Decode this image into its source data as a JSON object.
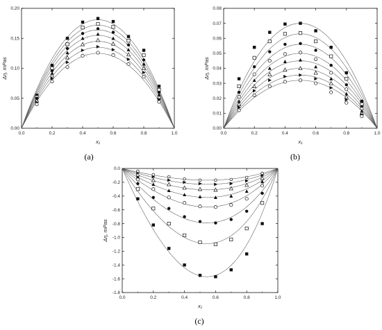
{
  "chart_data": [
    {
      "type": "scatter",
      "panel_label": "(a)",
      "xlabel": "x₁",
      "ylabel": "Δη, mPas",
      "xlim": [
        0.0,
        1.0
      ],
      "ylim": [
        0.0,
        0.2
      ],
      "x_ticks": [
        "0.0",
        "0.2",
        "0.4",
        "0.6",
        "0.8",
        "1.0"
      ],
      "y_ticks": [
        "0.00",
        "0.05",
        "0.10",
        "0.15",
        "0.20"
      ],
      "grid": false,
      "fit_curves": "symmetric parabola through (0,0) and (1,0) per series",
      "series": [
        {
          "marker": "filled-square",
          "peak": 0.181,
          "x": [
            0.1,
            0.2,
            0.3,
            0.4,
            0.5,
            0.6,
            0.7,
            0.8,
            0.9
          ],
          "y": [
            0.055,
            0.105,
            0.15,
            0.177,
            0.183,
            0.178,
            0.153,
            0.13,
            0.07
          ]
        },
        {
          "marker": "open-square",
          "peak": 0.172,
          "x": [
            0.1,
            0.2,
            0.3,
            0.4,
            0.5,
            0.6,
            0.7,
            0.8,
            0.9
          ],
          "y": [
            0.052,
            0.1,
            0.14,
            0.168,
            0.174,
            0.169,
            0.146,
            0.122,
            0.064
          ]
        },
        {
          "marker": "filled-circle",
          "peak": 0.164,
          "x": [
            0.1,
            0.2,
            0.3,
            0.4,
            0.5,
            0.6,
            0.7,
            0.8,
            0.9
          ],
          "y": [
            0.05,
            0.096,
            0.133,
            0.158,
            0.166,
            0.16,
            0.139,
            0.114,
            0.06
          ]
        },
        {
          "marker": "filled-triangle-up",
          "peak": 0.155,
          "x": [
            0.1,
            0.2,
            0.3,
            0.4,
            0.5,
            0.6,
            0.7,
            0.8,
            0.9
          ],
          "y": [
            0.048,
            0.092,
            0.126,
            0.15,
            0.157,
            0.15,
            0.131,
            0.107,
            0.056
          ]
        },
        {
          "marker": "open-triangle-up",
          "peak": 0.145,
          "x": [
            0.1,
            0.2,
            0.3,
            0.4,
            0.5,
            0.6,
            0.7,
            0.8,
            0.9
          ],
          "y": [
            0.046,
            0.088,
            0.118,
            0.14,
            0.147,
            0.141,
            0.123,
            0.1,
            0.052
          ]
        },
        {
          "marker": "filled-triangle-right",
          "peak": 0.135,
          "x": [
            0.1,
            0.2,
            0.3,
            0.4,
            0.5,
            0.6,
            0.7,
            0.8,
            0.9
          ],
          "y": [
            0.043,
            0.083,
            0.11,
            0.13,
            0.136,
            0.131,
            0.115,
            0.093,
            0.048
          ]
        },
        {
          "marker": "open-circle",
          "peak": 0.125,
          "x": [
            0.1,
            0.2,
            0.3,
            0.4,
            0.5,
            0.6,
            0.7,
            0.8,
            0.9
          ],
          "y": [
            0.04,
            0.078,
            0.102,
            0.121,
            0.126,
            0.122,
            0.107,
            0.086,
            0.044
          ]
        }
      ]
    },
    {
      "type": "scatter",
      "panel_label": "(b)",
      "xlabel": "x₁",
      "ylabel": "Δη, mPas",
      "xlim": [
        0.0,
        1.0
      ],
      "ylim": [
        0.0,
        0.08
      ],
      "x_ticks": [
        "0.0",
        "0.2",
        "0.4",
        "0.6",
        "0.8",
        "1.0"
      ],
      "y_ticks": [
        "0.00",
        "0.01",
        "0.02",
        "0.03",
        "0.04",
        "0.05",
        "0.06",
        "0.07",
        "0.08"
      ],
      "grid": false,
      "fit_curves": "symmetric parabola through (0,0) and (1,0) per series",
      "series": [
        {
          "marker": "filled-square",
          "peak": 0.07,
          "x": [
            0.1,
            0.2,
            0.3,
            0.4,
            0.5,
            0.6,
            0.7,
            0.8,
            0.9
          ],
          "y": [
            0.033,
            0.054,
            0.064,
            0.0695,
            0.07,
            0.065,
            0.054,
            0.037,
            0.018
          ]
        },
        {
          "marker": "open-square",
          "peak": 0.063,
          "x": [
            0.1,
            0.2,
            0.3,
            0.4,
            0.5,
            0.6,
            0.7,
            0.8,
            0.9
          ],
          "y": [
            0.028,
            0.047,
            0.058,
            0.063,
            0.0635,
            0.058,
            0.048,
            0.033,
            0.016
          ]
        },
        {
          "marker": "filled-circle",
          "peak": 0.056,
          "x": [
            0.1,
            0.2,
            0.3,
            0.4,
            0.5,
            0.6,
            0.7,
            0.8,
            0.9
          ],
          "y": [
            0.024,
            0.041,
            0.051,
            0.056,
            0.0565,
            0.052,
            0.042,
            0.029,
            0.0145
          ]
        },
        {
          "marker": "open-circle-alt",
          "peak": 0.05,
          "x": [
            0.1,
            0.2,
            0.3,
            0.4,
            0.5,
            0.6,
            0.7,
            0.8,
            0.9
          ],
          "y": [
            0.021,
            0.036,
            0.045,
            0.0495,
            0.0505,
            0.046,
            0.037,
            0.026,
            0.013
          ]
        },
        {
          "marker": "filled-triangle-up",
          "peak": 0.045,
          "x": [
            0.1,
            0.2,
            0.3,
            0.4,
            0.5,
            0.6,
            0.7,
            0.8,
            0.9
          ],
          "y": [
            0.018,
            0.032,
            0.04,
            0.0445,
            0.0455,
            0.041,
            0.033,
            0.023,
            0.0115
          ]
        },
        {
          "marker": "open-triangle-up",
          "peak": 0.04,
          "x": [
            0.1,
            0.2,
            0.3,
            0.4,
            0.5,
            0.6,
            0.7,
            0.8,
            0.9
          ],
          "y": [
            0.016,
            0.028,
            0.036,
            0.039,
            0.04,
            0.037,
            0.03,
            0.021,
            0.01
          ]
        },
        {
          "marker": "filled-triangle-right",
          "peak": 0.0355,
          "x": [
            0.1,
            0.2,
            0.3,
            0.4,
            0.5,
            0.6,
            0.7,
            0.8,
            0.9
          ],
          "y": [
            0.014,
            0.025,
            0.032,
            0.0345,
            0.0355,
            0.033,
            0.027,
            0.019,
            0.009
          ]
        },
        {
          "marker": "open-circle",
          "peak": 0.032,
          "x": [
            0.1,
            0.2,
            0.3,
            0.4,
            0.5,
            0.6,
            0.7,
            0.8,
            0.9
          ],
          "y": [
            0.012,
            0.022,
            0.028,
            0.031,
            0.032,
            0.03,
            0.024,
            0.017,
            0.008
          ]
        }
      ]
    },
    {
      "type": "scatter",
      "panel_label": "(c)",
      "xlabel": "x₁",
      "ylabel": "Δη, mPas",
      "xlim": [
        0.0,
        1.0
      ],
      "ylim": [
        -1.8,
        0.0
      ],
      "x_ticks": [
        "0.0",
        "0.2",
        "0.4",
        "0.6",
        "0.8",
        "1.0"
      ],
      "y_ticks": [
        "0.0",
        "-0.2",
        "-0.4",
        "-0.6",
        "-0.8",
        "-1.0",
        "-1.2",
        "-1.4",
        "-1.6",
        "-1.8"
      ],
      "grid": false,
      "fit_curves": "skewed polynomial through (0,0) and (1,0) per series, minimum near x1 = 0.58",
      "series": [
        {
          "marker": "filled-square",
          "peak": -1.57,
          "x": [
            0.1,
            0.2,
            0.3,
            0.4,
            0.5,
            0.6,
            0.7,
            0.8,
            0.9
          ],
          "y": [
            -0.44,
            -0.82,
            -1.16,
            -1.4,
            -1.55,
            -1.57,
            -1.47,
            -1.24,
            -0.8
          ]
        },
        {
          "marker": "open-square",
          "peak": -1.09,
          "x": [
            0.1,
            0.2,
            0.3,
            0.4,
            0.5,
            0.6,
            0.7,
            0.8,
            0.9
          ],
          "y": [
            -0.3,
            -0.58,
            -0.8,
            -0.97,
            -1.07,
            -1.1,
            -1.03,
            -0.87,
            -0.5
          ]
        },
        {
          "marker": "filled-circle",
          "peak": -0.79,
          "x": [
            0.1,
            0.2,
            0.3,
            0.4,
            0.5,
            0.6,
            0.7,
            0.8,
            0.9
          ],
          "y": [
            -0.22,
            -0.42,
            -0.58,
            -0.7,
            -0.77,
            -0.79,
            -0.74,
            -0.62,
            -0.36
          ]
        },
        {
          "marker": "open-circle",
          "peak": -0.56,
          "x": [
            0.1,
            0.2,
            0.3,
            0.4,
            0.5,
            0.6,
            0.7,
            0.8,
            0.9
          ],
          "y": [
            -0.16,
            -0.3,
            -0.42,
            -0.5,
            -0.55,
            -0.56,
            -0.53,
            -0.44,
            -0.25
          ]
        },
        {
          "marker": "filled-triangle-up",
          "peak": -0.42,
          "x": [
            0.1,
            0.2,
            0.3,
            0.4,
            0.5,
            0.6,
            0.7,
            0.8,
            0.9
          ],
          "y": [
            -0.12,
            -0.23,
            -0.32,
            -0.38,
            -0.41,
            -0.42,
            -0.4,
            -0.33,
            -0.19
          ]
        },
        {
          "marker": "open-triangle-up",
          "peak": -0.31,
          "x": [
            0.1,
            0.2,
            0.3,
            0.4,
            0.5,
            0.6,
            0.7,
            0.8,
            0.9
          ],
          "y": [
            -0.09,
            -0.17,
            -0.23,
            -0.28,
            -0.3,
            -0.31,
            -0.29,
            -0.24,
            -0.14
          ]
        },
        {
          "marker": "filled-triangle-right",
          "peak": -0.23,
          "x": [
            0.1,
            0.2,
            0.3,
            0.4,
            0.5,
            0.6,
            0.7,
            0.8,
            0.9
          ],
          "y": [
            -0.06,
            -0.12,
            -0.17,
            -0.2,
            -0.22,
            -0.23,
            -0.22,
            -0.18,
            -0.1
          ]
        },
        {
          "marker": "open-circle-small",
          "peak": -0.17,
          "x": [
            0.1,
            0.2,
            0.3,
            0.4,
            0.5,
            0.6,
            0.7,
            0.8,
            0.9
          ],
          "y": [
            -0.04,
            -0.09,
            -0.12,
            -0.15,
            -0.17,
            -0.17,
            -0.16,
            -0.13,
            -0.07
          ]
        }
      ]
    }
  ]
}
